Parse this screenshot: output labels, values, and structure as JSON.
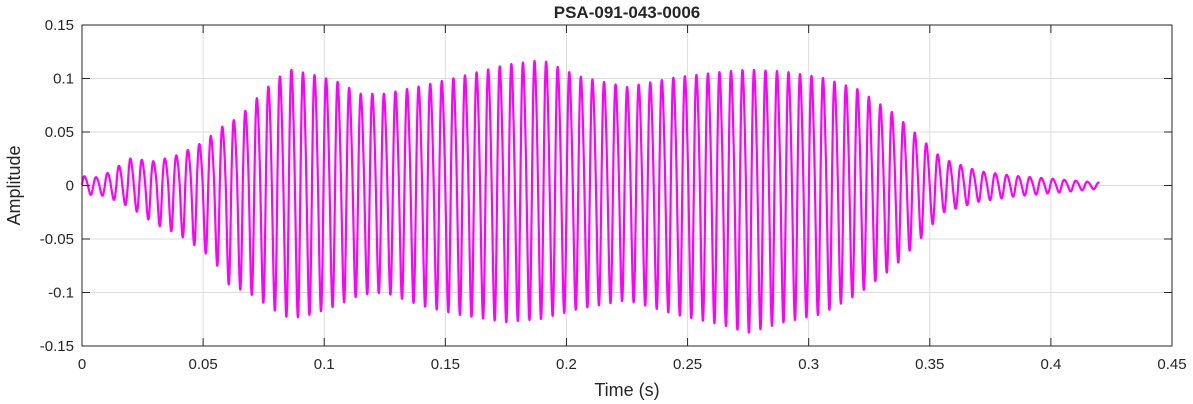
{
  "chart_data": {
    "type": "line",
    "title": "PSA-091-043-0006",
    "xlabel": "Time (s)",
    "ylabel": "Amplitude",
    "xlim": [
      0,
      0.45
    ],
    "ylim": [
      -0.15,
      0.15
    ],
    "xticks": [
      0,
      0.05,
      0.1,
      0.15,
      0.2,
      0.25,
      0.3,
      0.35,
      0.4,
      0.45
    ],
    "xtick_labels": [
      "0",
      "0.05",
      "0.1",
      "0.15",
      "0.2",
      "0.25",
      "0.3",
      "0.35",
      "0.4",
      "0.45"
    ],
    "yticks": [
      0.15,
      0.1,
      0.05,
      0,
      -0.05,
      -0.1,
      -0.15
    ],
    "ytick_labels": [
      "0.15",
      "0.1",
      "0.05",
      "0",
      "-0.05",
      "-0.1",
      "-0.15"
    ],
    "grid": true,
    "series": [
      {
        "color": "#ff00ff",
        "oscillation_frequency_hz": 210,
        "duration_s": 0.42,
        "envelope": [
          {
            "t": 0.0,
            "pos": 0.01,
            "neg": -0.01
          },
          {
            "t": 0.005,
            "pos": 0.008,
            "neg": -0.008
          },
          {
            "t": 0.01,
            "pos": 0.012,
            "neg": -0.01
          },
          {
            "t": 0.02,
            "pos": 0.028,
            "neg": -0.02
          },
          {
            "t": 0.03,
            "pos": 0.025,
            "neg": -0.035
          },
          {
            "t": 0.04,
            "pos": 0.032,
            "neg": -0.045
          },
          {
            "t": 0.05,
            "pos": 0.045,
            "neg": -0.06
          },
          {
            "t": 0.055,
            "pos": 0.055,
            "neg": -0.07
          },
          {
            "t": 0.06,
            "pos": 0.065,
            "neg": -0.09
          },
          {
            "t": 0.065,
            "pos": 0.07,
            "neg": -0.095
          },
          {
            "t": 0.07,
            "pos": 0.085,
            "neg": -0.1
          },
          {
            "t": 0.08,
            "pos": 0.11,
            "neg": -0.115
          },
          {
            "t": 0.086,
            "pos": 0.12,
            "neg": -0.122
          },
          {
            "t": 0.095,
            "pos": 0.115,
            "neg": -0.118
          },
          {
            "t": 0.105,
            "pos": 0.108,
            "neg": -0.11
          },
          {
            "t": 0.115,
            "pos": 0.095,
            "neg": -0.1
          },
          {
            "t": 0.125,
            "pos": 0.095,
            "neg": -0.098
          },
          {
            "t": 0.14,
            "pos": 0.103,
            "neg": -0.11
          },
          {
            "t": 0.155,
            "pos": 0.112,
            "neg": -0.118
          },
          {
            "t": 0.175,
            "pos": 0.125,
            "neg": -0.125
          },
          {
            "t": 0.19,
            "pos": 0.13,
            "neg": -0.122
          },
          {
            "t": 0.205,
            "pos": 0.113,
            "neg": -0.113
          },
          {
            "t": 0.225,
            "pos": 0.102,
            "neg": -0.105
          },
          {
            "t": 0.245,
            "pos": 0.112,
            "neg": -0.118
          },
          {
            "t": 0.265,
            "pos": 0.118,
            "neg": -0.128
          },
          {
            "t": 0.275,
            "pos": 0.12,
            "neg": -0.135
          },
          {
            "t": 0.29,
            "pos": 0.118,
            "neg": -0.125
          },
          {
            "t": 0.305,
            "pos": 0.112,
            "neg": -0.118
          },
          {
            "t": 0.32,
            "pos": 0.1,
            "neg": -0.1
          },
          {
            "t": 0.335,
            "pos": 0.075,
            "neg": -0.075
          },
          {
            "t": 0.345,
            "pos": 0.052,
            "neg": -0.052
          },
          {
            "t": 0.355,
            "pos": 0.028,
            "neg": -0.025
          },
          {
            "t": 0.37,
            "pos": 0.015,
            "neg": -0.015
          },
          {
            "t": 0.385,
            "pos": 0.01,
            "neg": -0.01
          },
          {
            "t": 0.4,
            "pos": 0.007,
            "neg": -0.007
          },
          {
            "t": 0.42,
            "pos": 0.003,
            "neg": -0.003
          }
        ]
      }
    ]
  }
}
